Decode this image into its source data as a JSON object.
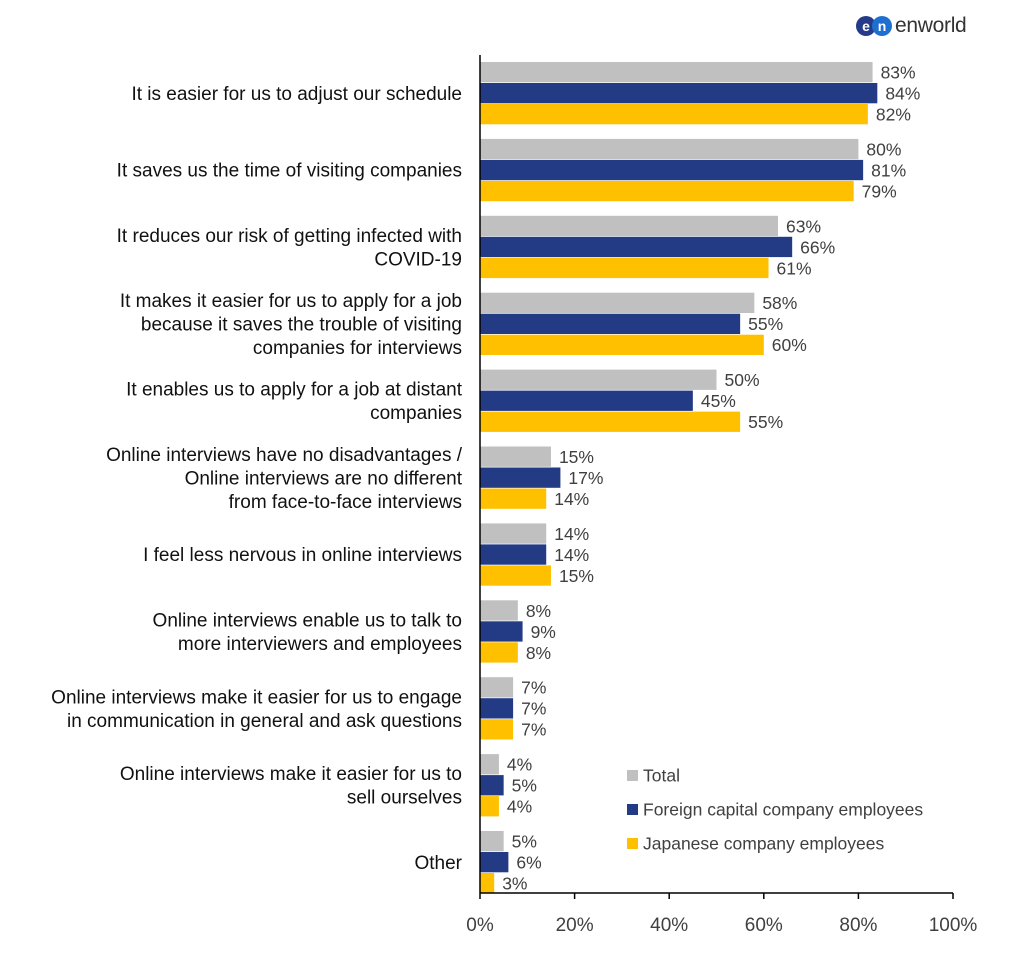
{
  "logo": {
    "mark_left": "e",
    "mark_right": "n",
    "text": "enworld"
  },
  "colors": {
    "total": "#c0c0c0",
    "foreign": "#233b85",
    "japanese": "#ffc000",
    "axis": "#000000",
    "value_label": "#404040",
    "category_label": "#111111"
  },
  "chart_data": {
    "type": "bar",
    "orientation": "horizontal",
    "categories": [
      [
        "It is easier for us to adjust our schedule"
      ],
      [
        "It saves us the time of visiting companies"
      ],
      [
        "It reduces our risk of getting infected with",
        "COVID-19"
      ],
      [
        "It makes it easier for us to apply for a job",
        "because it saves the trouble of visiting",
        "companies for interviews"
      ],
      [
        "It enables us to apply for a job at distant",
        "companies"
      ],
      [
        "Online interviews have no disadvantages /",
        "Online interviews are no different",
        "from face-to-face interviews"
      ],
      [
        "I feel less nervous in online interviews"
      ],
      [
        "Online interviews enable us to talk to",
        "more interviewers and employees"
      ],
      [
        "Online interviews make it easier for us to engage",
        "in communication in general and ask questions"
      ],
      [
        "Online interviews make it easier for us to",
        "sell ourselves"
      ],
      [
        "Other"
      ]
    ],
    "series": [
      {
        "name": "Total",
        "values": [
          83,
          80,
          63,
          58,
          50,
          15,
          14,
          8,
          7,
          4,
          5
        ]
      },
      {
        "name": "Foreign capital company employees",
        "values": [
          84,
          81,
          66,
          55,
          45,
          17,
          14,
          9,
          7,
          5,
          6
        ]
      },
      {
        "name": "Japanese company employees",
        "values": [
          82,
          79,
          61,
          60,
          55,
          14,
          15,
          8,
          7,
          4,
          3
        ]
      }
    ],
    "value_suffix": "%",
    "xlim": [
      0,
      100
    ],
    "xticks": [
      "0%",
      "20%",
      "40%",
      "60%",
      "80%",
      "100%"
    ],
    "legend_position": "bottom-right",
    "grid": false
  }
}
